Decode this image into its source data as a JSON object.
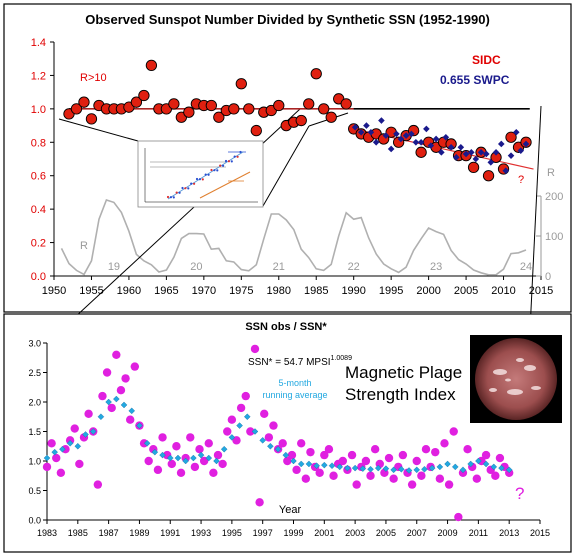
{
  "chart_data": [
    {
      "type": "scatter",
      "title": "Observed Sunspot Number Divided by Synthetic SSN (1952-1990)",
      "xlim": [
        1950,
        2015
      ],
      "ylim": [
        0,
        1.4
      ],
      "x_ticks": [
        "1950",
        "1955",
        "1960",
        "1965",
        "1970",
        "1975",
        "1980",
        "1985",
        "1990",
        "1995",
        "2000",
        "2005",
        "2010",
        "2015"
      ],
      "y_ticks": [
        "0.0",
        "0.2",
        "0.4",
        "0.6",
        "0.8",
        "1.0",
        "1.2",
        "1.4"
      ],
      "y2_ticks": [
        "0",
        "100",
        "200"
      ],
      "y2_label": "R",
      "annotations": {
        "r_threshold": "R>10",
        "sidc_label": "SIDC",
        "swpc_label": "0.655 SWPC",
        "question": "?",
        "cycle_numbers": [
          "19",
          "20",
          "21",
          "22",
          "23",
          "24"
        ],
        "r_left_label": "R"
      },
      "colors": {
        "sidc": "#e02010",
        "swpc": "#1a1a8c",
        "reference": "#000000",
        "trend": "#e03030",
        "ssn": "#b0b0b0"
      },
      "reference_line_y": 1.0,
      "series": [
        {
          "name": "SIDC",
          "x": [
            1952,
            1953,
            1954,
            1955,
            1956,
            1957,
            1958,
            1959,
            1960,
            1961,
            1962,
            1963,
            1964,
            1965,
            1966,
            1967,
            1968,
            1969,
            1970,
            1971,
            1972,
            1973,
            1974,
            1975,
            1976,
            1977,
            1978,
            1979,
            1980,
            1981,
            1982,
            1983,
            1984,
            1985,
            1986,
            1987,
            1988,
            1989,
            1990,
            1991,
            1992,
            1993,
            1994,
            1995,
            1996,
            1997,
            1998,
            1999,
            2000,
            2001,
            2002,
            2003,
            2004,
            2005,
            2006,
            2007,
            2008,
            2009,
            2010,
            2011,
            2012,
            2013
          ],
          "y": [
            0.97,
            1.0,
            1.04,
            0.94,
            1.02,
            1.0,
            1.0,
            1.0,
            1.01,
            1.04,
            1.08,
            1.26,
            1.0,
            1.0,
            1.03,
            0.95,
            0.98,
            1.03,
            1.02,
            1.02,
            0.95,
            0.99,
            1.0,
            1.15,
            1.0,
            0.87,
            0.98,
            0.99,
            1.02,
            0.9,
            0.92,
            0.93,
            1.03,
            1.21,
            1.0,
            0.95,
            1.06,
            1.03,
            0.88,
            0.85,
            0.83,
            0.85,
            0.82,
            0.86,
            0.8,
            0.84,
            0.87,
            0.74,
            0.8,
            0.77,
            0.8,
            0.79,
            0.72,
            0.72,
            0.65,
            0.74,
            0.6,
            0.71,
            0.64,
            0.83,
            0.77,
            0.8
          ]
        },
        {
          "name": "SWPC",
          "x": [
            1990.2,
            1991.0,
            1991.7,
            1992.3,
            1993.0,
            1993.7,
            1994.3,
            1995.0,
            1995.7,
            1996.3,
            1997.0,
            1997.7,
            1998.3,
            1999.0,
            1999.7,
            2000.3,
            2001.0,
            2001.7,
            2002.3,
            2003.0,
            2003.7,
            2004.3,
            2005.0,
            2005.7,
            2006.3,
            2007.0,
            2007.7,
            2008.3,
            2009.0,
            2009.7,
            2010.3,
            2011.0,
            2011.7,
            2012.3,
            2013.0
          ],
          "y": [
            0.89,
            0.86,
            0.9,
            0.86,
            0.8,
            0.93,
            0.84,
            0.76,
            0.85,
            0.82,
            0.84,
            0.85,
            0.8,
            0.8,
            0.88,
            0.78,
            0.82,
            0.74,
            0.83,
            0.77,
            0.71,
            0.77,
            0.73,
            0.74,
            0.7,
            0.74,
            0.73,
            0.68,
            0.74,
            0.79,
            0.63,
            0.72,
            0.86,
            0.75,
            0.79
          ]
        },
        {
          "name": "R (SSN, right axis)",
          "x": [
            1951,
            1952,
            1953,
            1954,
            1955,
            1956,
            1957,
            1958,
            1959,
            1960,
            1961,
            1962,
            1963,
            1964,
            1965,
            1966,
            1967,
            1968,
            1969,
            1970,
            1971,
            1972,
            1973,
            1974,
            1975,
            1976,
            1977,
            1978,
            1979,
            1980,
            1981,
            1982,
            1983,
            1984,
            1985,
            1986,
            1987,
            1988,
            1989,
            1990,
            1991,
            1992,
            1993,
            1994,
            1995,
            1996,
            1997,
            1998,
            1999,
            2000,
            2001,
            2002,
            2003,
            2004,
            2005,
            2006,
            2007,
            2008,
            2009,
            2010,
            2011,
            2012,
            2013
          ],
          "y": [
            69,
            31,
            14,
            4,
            38,
            142,
            190,
            184,
            159,
            112,
            54,
            38,
            28,
            10,
            15,
            47,
            94,
            106,
            106,
            105,
            67,
            69,
            38,
            35,
            16,
            13,
            28,
            93,
            155,
            155,
            140,
            116,
            67,
            46,
            18,
            14,
            29,
            100,
            158,
            142,
            146,
            95,
            55,
            30,
            18,
            9,
            22,
            64,
            93,
            120,
            111,
            104,
            64,
            41,
            30,
            15,
            8,
            3,
            3,
            17,
            56,
            58,
            65
          ]
        }
      ],
      "trend_lines": [
        {
          "name": "flat",
          "x": [
            1952,
            1990
          ],
          "y": [
            1.0,
            1.0
          ]
        },
        {
          "name": "decline",
          "x": [
            1990,
            2014
          ],
          "y": [
            0.88,
            0.64
          ]
        }
      ]
    },
    {
      "type": "scatter",
      "title": "SSN obs / SSN*",
      "xlabel": "Year",
      "xlim": [
        1983,
        2015
      ],
      "ylim": [
        0,
        3.0
      ],
      "x_ticks": [
        "1983",
        "1985",
        "1987",
        "1989",
        "1991",
        "1993",
        "1995",
        "1997",
        "1999",
        "2001",
        "2003",
        "2005",
        "2007",
        "2009",
        "2011",
        "2013",
        "2015"
      ],
      "y_ticks": [
        "0.0",
        "0.5",
        "1.0",
        "1.5",
        "2.0",
        "2.5",
        "3.0"
      ],
      "annotations": {
        "equation_prefix": "SSN* = 54.7 MPSI",
        "equation_exponent": "1.0089",
        "running_line1": "5-month",
        "running_line2": "running average",
        "mpsi_line1": "Magnetic Plage",
        "mpsi_line2": "Strength Index",
        "question": "?"
      },
      "colors": {
        "monthly": "#e020e0",
        "running": "#22a8e0"
      },
      "series": [
        {
          "name": "monthly",
          "x": [
            1983.0,
            1983.3,
            1983.6,
            1983.9,
            1984.2,
            1984.5,
            1984.8,
            1985.1,
            1985.4,
            1985.7,
            1986.0,
            1986.3,
            1986.6,
            1986.9,
            1987.2,
            1987.5,
            1987.8,
            1988.1,
            1988.4,
            1988.7,
            1989.0,
            1989.3,
            1989.6,
            1989.9,
            1990.2,
            1990.5,
            1990.8,
            1991.1,
            1991.4,
            1991.7,
            1992.0,
            1992.3,
            1992.6,
            1992.9,
            1993.2,
            1993.5,
            1993.8,
            1994.1,
            1994.4,
            1994.7,
            1995.0,
            1995.3,
            1995.6,
            1995.9,
            1996.2,
            1996.5,
            1996.8,
            1997.1,
            1997.4,
            1997.7,
            1998.0,
            1998.3,
            1998.6,
            1998.9,
            1999.2,
            1999.5,
            1999.8,
            2000.1,
            2000.4,
            2000.7,
            2001.0,
            2001.3,
            2001.6,
            2001.9,
            2002.2,
            2002.5,
            2002.8,
            2003.1,
            2003.4,
            2003.7,
            2004.0,
            2004.3,
            2004.6,
            2004.9,
            2005.2,
            2005.5,
            2005.8,
            2006.1,
            2006.4,
            2006.7,
            2007.0,
            2007.3,
            2007.6,
            2007.9,
            2008.2,
            2008.5,
            2008.8,
            2009.1,
            2009.4,
            2009.7,
            2010.0,
            2010.3,
            2010.6,
            2010.9,
            2011.2,
            2011.5,
            2011.8,
            2012.1,
            2012.4,
            2012.7,
            2013.0
          ],
          "y": [
            0.9,
            1.3,
            1.05,
            0.8,
            1.2,
            1.35,
            1.55,
            0.95,
            1.4,
            1.8,
            1.5,
            0.6,
            2.1,
            2.5,
            1.9,
            2.8,
            2.2,
            2.4,
            1.7,
            2.6,
            1.6,
            1.3,
            1.0,
            1.2,
            0.85,
            1.4,
            1.1,
            0.95,
            1.25,
            0.8,
            1.05,
            1.4,
            0.9,
            1.2,
            1.0,
            1.3,
            0.8,
            1.1,
            0.95,
            1.5,
            1.7,
            1.35,
            1.9,
            2.1,
            1.5,
            2.9,
            0.3,
            1.8,
            1.4,
            1.6,
            1.2,
            1.3,
            1.0,
            1.1,
            0.85,
            1.3,
            0.7,
            1.15,
            0.9,
            0.8,
            1.1,
            1.2,
            0.75,
            0.95,
            1.0,
            0.85,
            1.1,
            0.6,
            0.9,
            1.0,
            0.75,
            1.2,
            0.95,
            0.8,
            1.05,
            0.7,
            0.9,
            1.1,
            0.8,
            0.6,
            1.0,
            0.75,
            1.2,
            0.9,
            1.15,
            0.7,
            1.3,
            0.6,
            1.5,
            0.05,
            0.8,
            1.2,
            0.9,
            0.7,
            1.0,
            1.1,
            0.85,
            0.75,
            1.05,
            0.9,
            0.8
          ]
        },
        {
          "name": "5-month running average",
          "x": [
            1983.0,
            1983.5,
            1984.0,
            1984.5,
            1985.0,
            1985.5,
            1986.0,
            1986.5,
            1987.0,
            1987.5,
            1988.0,
            1988.5,
            1989.0,
            1989.5,
            1990.0,
            1990.5,
            1991.0,
            1991.5,
            1992.0,
            1992.5,
            1993.0,
            1993.5,
            1994.0,
            1994.5,
            1995.0,
            1995.5,
            1996.0,
            1996.5,
            1997.0,
            1997.5,
            1998.0,
            1998.5,
            1999.0,
            1999.5,
            2000.0,
            2000.5,
            2001.0,
            2001.5,
            2002.0,
            2002.5,
            2003.0,
            2003.5,
            2004.0,
            2004.5,
            2005.0,
            2005.5,
            2006.0,
            2006.5,
            2007.0,
            2007.5,
            2008.0,
            2008.5,
            2009.0,
            2009.5,
            2010.0,
            2010.5,
            2011.0,
            2011.5,
            2012.0,
            2012.5,
            2013.0
          ],
          "y": [
            1.05,
            1.15,
            1.2,
            1.3,
            1.25,
            1.45,
            1.5,
            1.75,
            2.0,
            2.05,
            1.95,
            1.85,
            1.6,
            1.3,
            1.15,
            1.1,
            1.05,
            1.05,
            1.0,
            1.05,
            1.1,
            1.05,
            1.0,
            1.2,
            1.4,
            1.6,
            1.75,
            1.5,
            1.35,
            1.25,
            1.2,
            1.1,
            1.0,
            0.95,
            0.95,
            0.92,
            0.93,
            0.92,
            0.9,
            0.88,
            0.88,
            0.87,
            0.86,
            0.88,
            0.87,
            0.85,
            0.86,
            0.84,
            0.85,
            0.86,
            0.88,
            0.9,
            0.95,
            0.9,
            0.85,
            0.95,
            1.0,
            0.95,
            0.9,
            0.88,
            0.85
          ]
        }
      ]
    }
  ]
}
